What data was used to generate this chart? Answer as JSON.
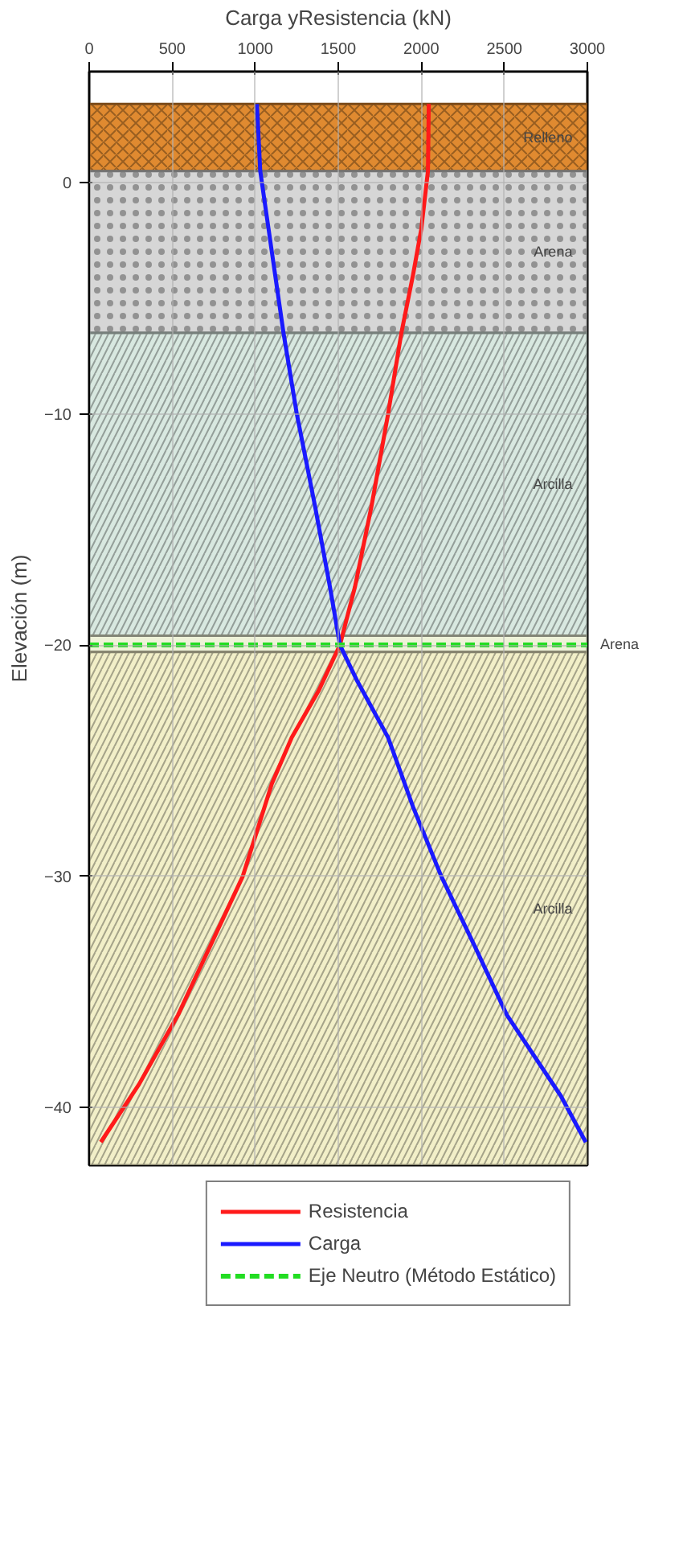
{
  "chart_data": {
    "type": "line",
    "xlabel": "Carga yResistencia (kN)",
    "ylabel": "Elevación (m)",
    "xlim": [
      0,
      3000
    ],
    "xticks": [
      0,
      500,
      1000,
      1500,
      2000,
      2500,
      3000
    ],
    "ylim": [
      -42.5,
      4.8
    ],
    "yticks": [
      0,
      -10,
      -20,
      -30,
      -40
    ],
    "grid": true,
    "legend": "bottom",
    "line_style": "solid",
    "marker": "none",
    "series": [
      {
        "name": "Resistencia",
        "color": "#ff1a1a",
        "x": [
          2045,
          2040,
          2000,
          1950,
          1880,
          1800,
          1700,
          1600,
          1510,
          1380,
          1220,
          1100,
          925,
          730,
          535,
          300,
          70
        ],
        "values": [
          3.4,
          0.5,
          -2,
          -4,
          -6.5,
          -10,
          -14,
          -17.5,
          -20,
          -22,
          -24,
          -26,
          -30,
          -33,
          -36,
          -39,
          -41.5
        ]
      },
      {
        "name": "Carga",
        "color": "#1a1aff",
        "x": [
          1010,
          1030,
          1080,
          1120,
          1170,
          1250,
          1360,
          1450,
          1510,
          1610,
          1800,
          1950,
          2120,
          2320,
          2515,
          2840,
          2990
        ],
        "values": [
          3.4,
          0.5,
          -2,
          -4,
          -6.5,
          -10,
          -14,
          -17.5,
          -20,
          -21.5,
          -24,
          -27,
          -30,
          -33,
          -36,
          -39.5,
          -41.5
        ]
      }
    ],
    "ref_lines": [
      {
        "axis": "y",
        "value": -20,
        "label": "Eje Neutro (Método Estático)",
        "color": "#22dd22",
        "line_style": "dashed"
      }
    ],
    "bands": [
      {
        "axis": "y",
        "from": 0.5,
        "to": 3.4,
        "label": "Relleno",
        "color": "#e08a30"
      },
      {
        "axis": "y",
        "from": -6.5,
        "to": 0.5,
        "label": "Arena",
        "color": "#d6d6d6"
      },
      {
        "axis": "y",
        "from": -19.6,
        "to": -6.5,
        "label": "Arcilla",
        "color": "#d8e8e0"
      },
      {
        "axis": "y",
        "from": -20.3,
        "to": -19.6,
        "label": "Arena",
        "color": "#eef2d8"
      },
      {
        "axis": "y",
        "from": -42.5,
        "to": -20.3,
        "label": "Arcilla",
        "color": "#f2efc8"
      }
    ]
  }
}
